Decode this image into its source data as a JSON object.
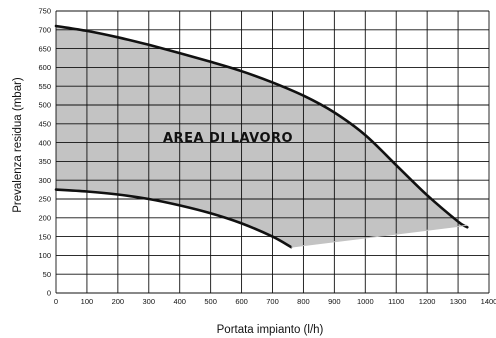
{
  "chart_data": {
    "type": "area",
    "xlabel": "Portata impianto (l/h)",
    "ylabel": "Prevalenza residua (mbar)",
    "xlim": [
      0,
      1400
    ],
    "ylim": [
      0,
      750
    ],
    "x_ticks": [
      0,
      100,
      200,
      300,
      400,
      500,
      600,
      700,
      800,
      900,
      1000,
      1100,
      1200,
      1300,
      1400
    ],
    "y_ticks": [
      0,
      50,
      100,
      150,
      200,
      250,
      300,
      350,
      400,
      450,
      500,
      550,
      600,
      650,
      700,
      750
    ],
    "grid": true,
    "annotation": "AREA DI LAVORO",
    "area_color": "#c3c3c3",
    "line_color": "#111111",
    "series": [
      {
        "x": [
          0,
          100,
          200,
          300,
          400,
          500,
          600,
          700,
          800,
          900,
          1000,
          1100,
          1200,
          1300,
          1330
        ],
        "y": [
          710,
          697,
          680,
          660,
          638,
          615,
          590,
          560,
          525,
          480,
          420,
          340,
          260,
          190,
          175
        ]
      },
      {
        "x": [
          0,
          100,
          200,
          300,
          400,
          500,
          600,
          700,
          760
        ],
        "y": [
          275,
          270,
          262,
          250,
          233,
          212,
          185,
          150,
          122
        ]
      },
      {
        "x": [
          760,
          1330
        ],
        "y": [
          122,
          180
        ]
      }
    ],
    "working_area": {
      "x": [
        0,
        100,
        200,
        300,
        400,
        500,
        600,
        700,
        800,
        900,
        1000,
        1100,
        1200,
        1300,
        1330,
        760,
        700,
        600,
        500,
        400,
        300,
        200,
        100,
        0
      ],
      "y": [
        710,
        697,
        680,
        660,
        638,
        615,
        590,
        560,
        525,
        480,
        420,
        340,
        260,
        190,
        180,
        122,
        150,
        185,
        212,
        233,
        250,
        262,
        270,
        275
      ]
    }
  }
}
